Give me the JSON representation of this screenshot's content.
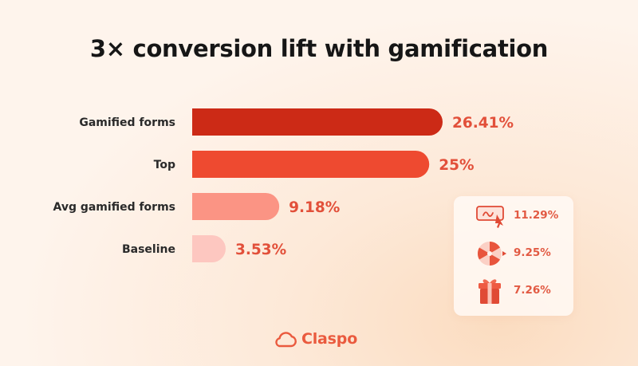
{
  "title": "3× conversion lift with gamification",
  "chart_data": {
    "type": "bar",
    "orientation": "horizontal",
    "title": "3× conversion lift with gamification",
    "unit": "%",
    "categories": [
      "Gamified forms",
      "Top",
      "Avg gamified forms",
      "Baseline"
    ],
    "values": [
      26.41,
      25,
      9.18,
      3.53
    ],
    "value_labels": [
      "26.41%",
      "25%",
      "9.18%",
      "3.53%"
    ],
    "bar_colors": [
      "#cc2a16",
      "#ee4a30",
      "#fb9484",
      "#fdc7c0"
    ],
    "label_colors": [
      "#e2503a",
      "#e2503a",
      "#e2503a",
      "#e2503a"
    ],
    "xlim": [
      0,
      26.41
    ],
    "grid": false,
    "legend": "none"
  },
  "card": {
    "items": [
      {
        "icon": "form-cursor-icon",
        "value": "11.29%"
      },
      {
        "icon": "spin-wheel-icon",
        "value": "9.25%"
      },
      {
        "icon": "gift-box-icon",
        "value": "7.26%"
      }
    ]
  },
  "brand": {
    "name": "Claspo",
    "icon": "cloud-logo-icon",
    "color": "#ea5a3e"
  }
}
